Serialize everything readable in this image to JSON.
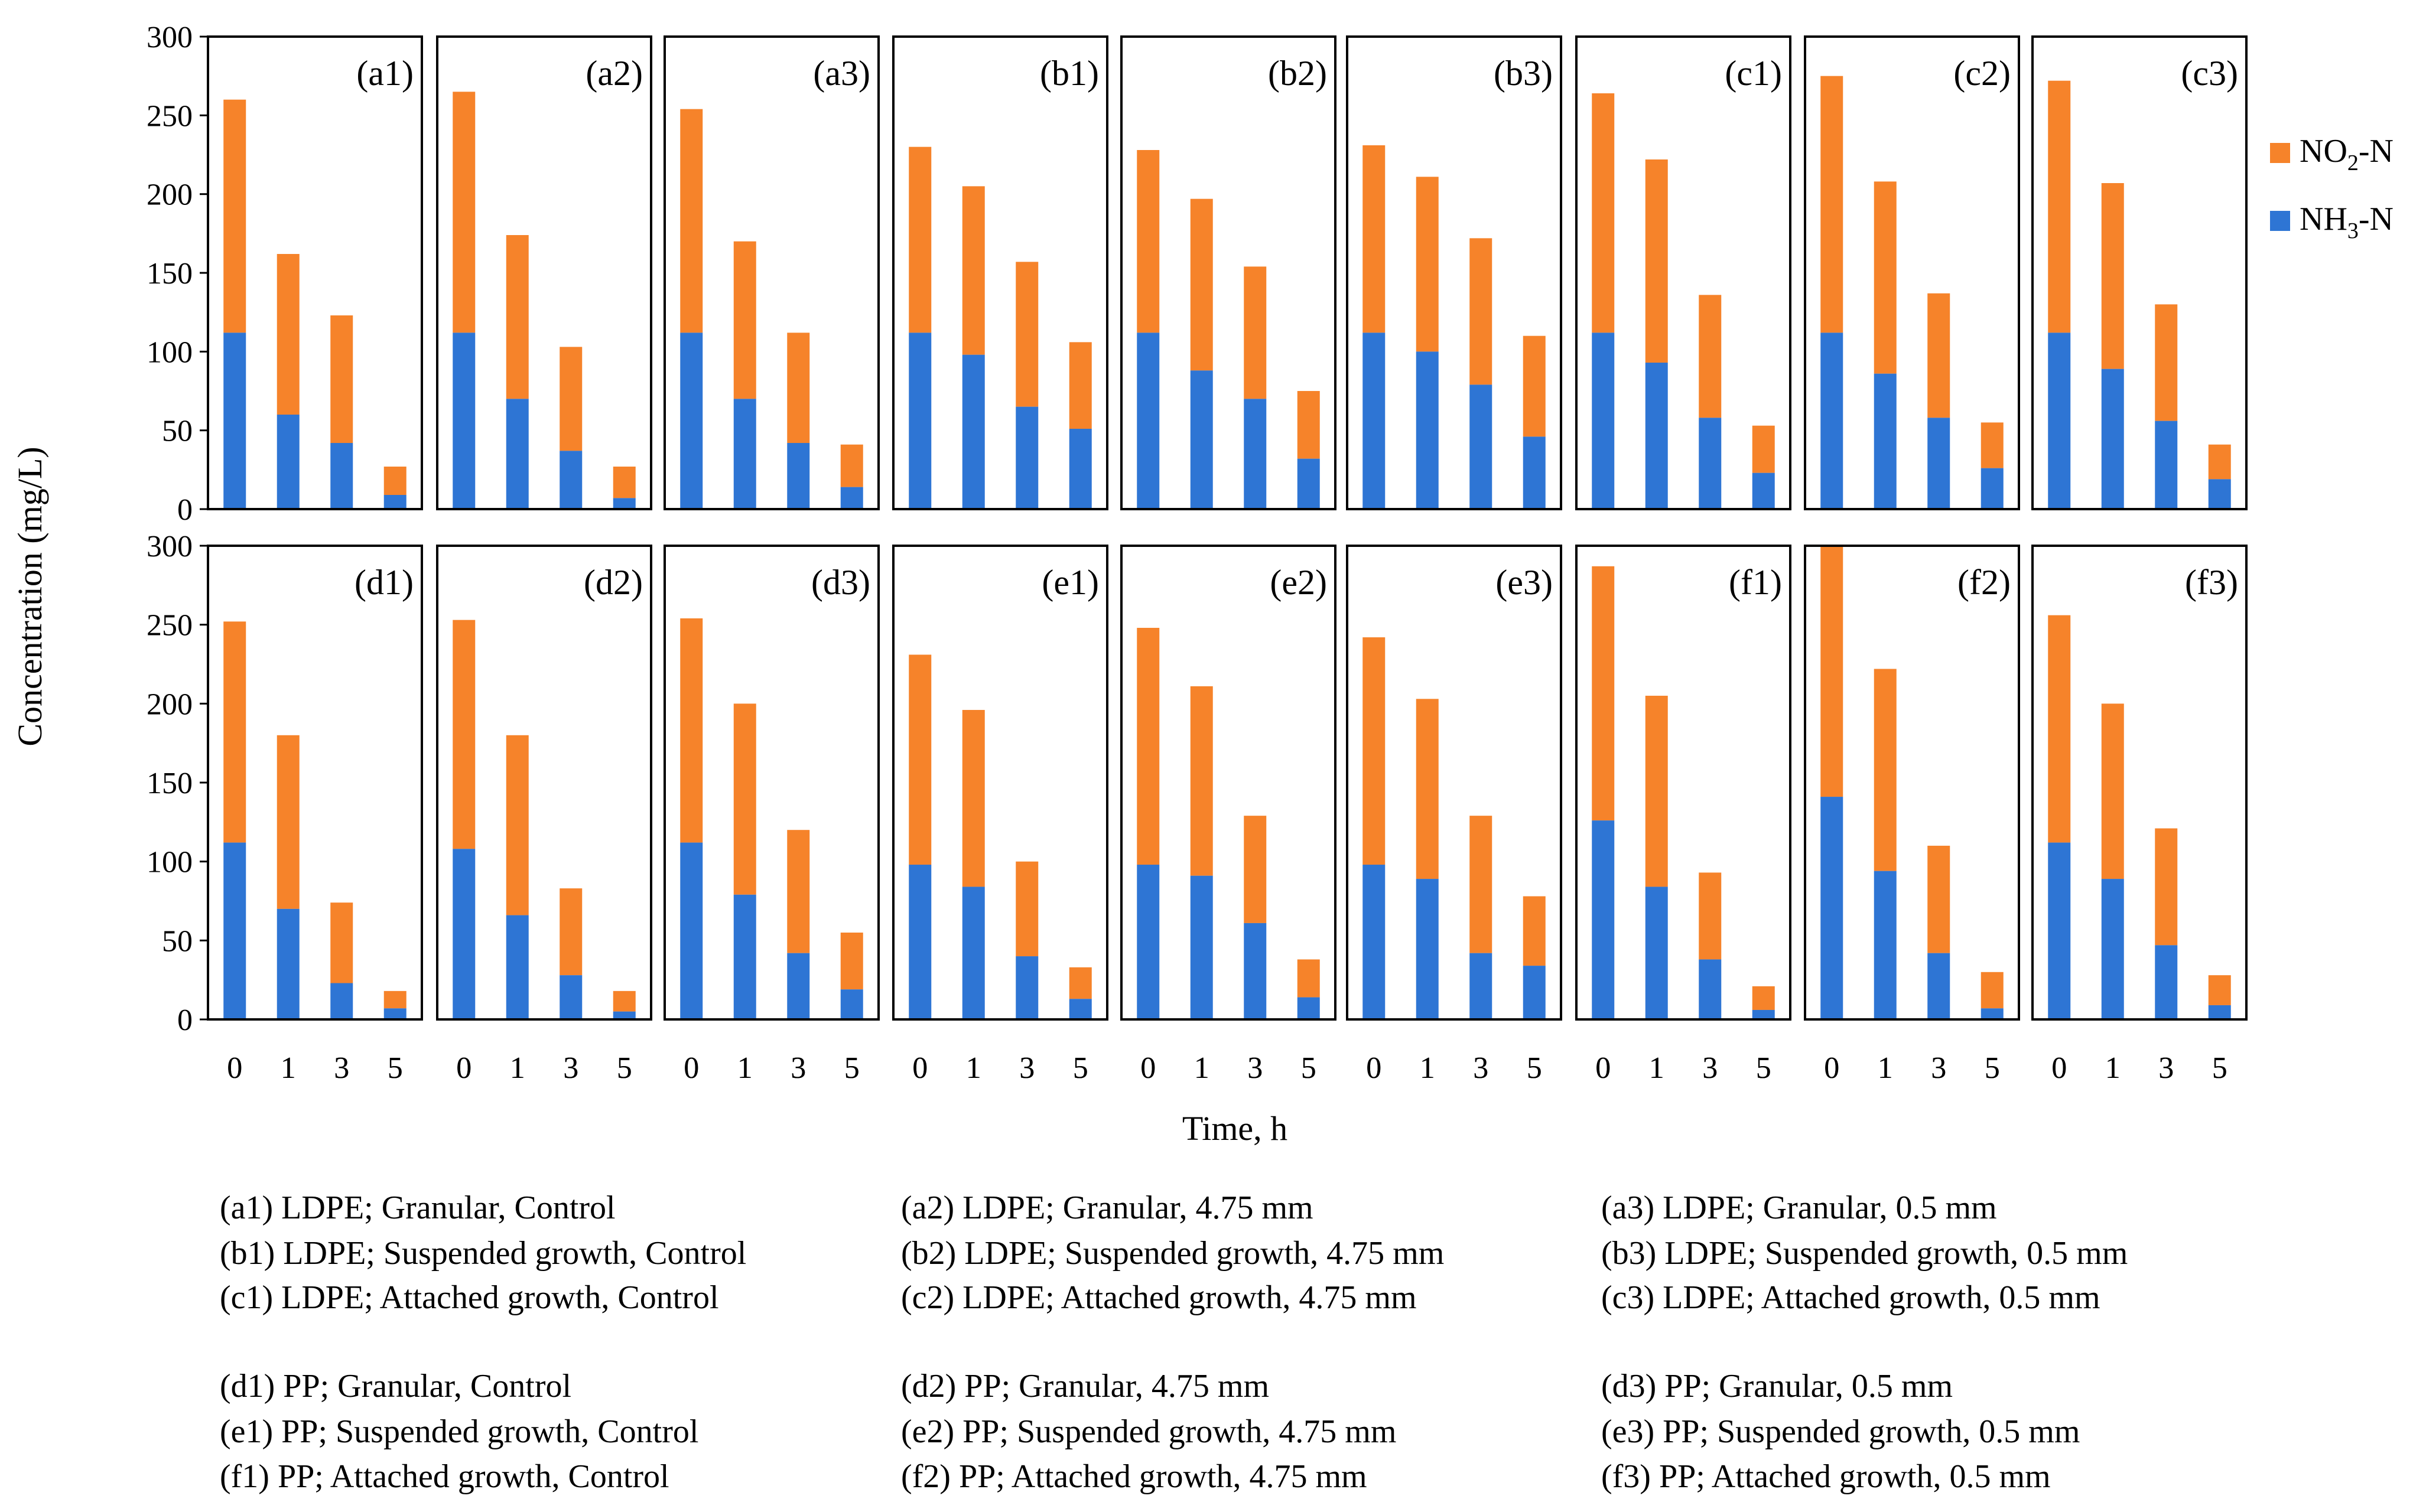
{
  "chart_data": {
    "type": "bar",
    "stacked": true,
    "xlabel": "Time, h",
    "ylabel": "Concentration (mg/L)",
    "ylim": [
      0,
      300
    ],
    "yticks": [
      "0",
      "50",
      "100",
      "150",
      "200",
      "250",
      "300"
    ],
    "categories": [
      "0",
      "1",
      "3",
      "5"
    ],
    "colors": {
      "NH3-N": "#2E75D4",
      "NO2-N": "#F6832A"
    },
    "legend": [
      {
        "key": "NO2-N",
        "main": "NO",
        "sub": "2",
        "tail": "-N"
      },
      {
        "key": "NH3-N",
        "main": "NH",
        "sub": "3",
        "tail": "-N"
      }
    ],
    "panels": [
      {
        "label": "(a1)",
        "nh3": [
          112,
          60,
          42,
          9
        ],
        "total": [
          260,
          162,
          123,
          27
        ]
      },
      {
        "label": "(a2)",
        "nh3": [
          112,
          70,
          37,
          7
        ],
        "total": [
          265,
          174,
          103,
          27
        ]
      },
      {
        "label": "(a3)",
        "nh3": [
          112,
          70,
          42,
          14
        ],
        "total": [
          254,
          170,
          112,
          41
        ]
      },
      {
        "label": "(b1)",
        "nh3": [
          112,
          98,
          65,
          51
        ],
        "total": [
          230,
          205,
          157,
          106
        ]
      },
      {
        "label": "(b2)",
        "nh3": [
          112,
          88,
          70,
          32
        ],
        "total": [
          228,
          197,
          154,
          75
        ]
      },
      {
        "label": "(b3)",
        "nh3": [
          112,
          100,
          79,
          46
        ],
        "total": [
          231,
          211,
          172,
          110
        ]
      },
      {
        "label": "(c1)",
        "nh3": [
          112,
          93,
          58,
          23
        ],
        "total": [
          264,
          222,
          136,
          53
        ]
      },
      {
        "label": "(c2)",
        "nh3": [
          112,
          86,
          58,
          26
        ],
        "total": [
          275,
          208,
          137,
          55
        ]
      },
      {
        "label": "(c3)",
        "nh3": [
          112,
          89,
          56,
          19
        ],
        "total": [
          272,
          207,
          130,
          41
        ]
      },
      {
        "label": "(d1)",
        "nh3": [
          112,
          70,
          23,
          7
        ],
        "total": [
          252,
          180,
          74,
          18
        ]
      },
      {
        "label": "(d2)",
        "nh3": [
          108,
          66,
          28,
          5
        ],
        "total": [
          253,
          180,
          83,
          18
        ]
      },
      {
        "label": "(d3)",
        "nh3": [
          112,
          79,
          42,
          19
        ],
        "total": [
          254,
          200,
          120,
          55
        ]
      },
      {
        "label": "(e1)",
        "nh3": [
          98,
          84,
          40,
          13
        ],
        "total": [
          231,
          196,
          100,
          33
        ]
      },
      {
        "label": "(e2)",
        "nh3": [
          98,
          91,
          61,
          14
        ],
        "total": [
          248,
          211,
          129,
          38
        ]
      },
      {
        "label": "(e3)",
        "nh3": [
          98,
          89,
          42,
          34
        ],
        "total": [
          242,
          203,
          129,
          78
        ]
      },
      {
        "label": "(f1)",
        "nh3": [
          126,
          84,
          38,
          6
        ],
        "total": [
          287,
          205,
          93,
          21
        ]
      },
      {
        "label": "(f2)",
        "nh3": [
          141,
          94,
          42,
          7
        ],
        "total": [
          300,
          222,
          110,
          30
        ]
      },
      {
        "label": "(f3)",
        "nh3": [
          112,
          89,
          47,
          9
        ],
        "total": [
          256,
          200,
          121,
          28
        ]
      }
    ],
    "captions": [
      [
        "(a1) LDPE; Granular, Control",
        "(a2) LDPE; Granular, 4.75 mm",
        "(a3) LDPE; Granular, 0.5 mm"
      ],
      [
        "(b1) LDPE; Suspended growth, Control",
        "(b2) LDPE; Suspended growth, 4.75 mm",
        "(b3) LDPE; Suspended growth, 0.5 mm"
      ],
      [
        "(c1) LDPE; Attached growth, Control",
        "(c2) LDPE; Attached growth, 4.75 mm",
        "(c3) LDPE; Attached growth, 0.5 mm"
      ],
      [
        "(d1) PP; Granular, Control",
        "(d2) PP; Granular, 4.75 mm",
        "(d3) PP; Granular, 0.5 mm"
      ],
      [
        "(e1) PP; Suspended growth, Control",
        "(e2) PP; Suspended growth, 4.75 mm",
        "(e3) PP; Suspended growth, 0.5 mm"
      ],
      [
        "(f1) PP; Attached growth, Control",
        "(f2) PP; Attached growth, 4.75 mm",
        "(f3) PP; Attached growth, 0.5 mm"
      ]
    ]
  }
}
